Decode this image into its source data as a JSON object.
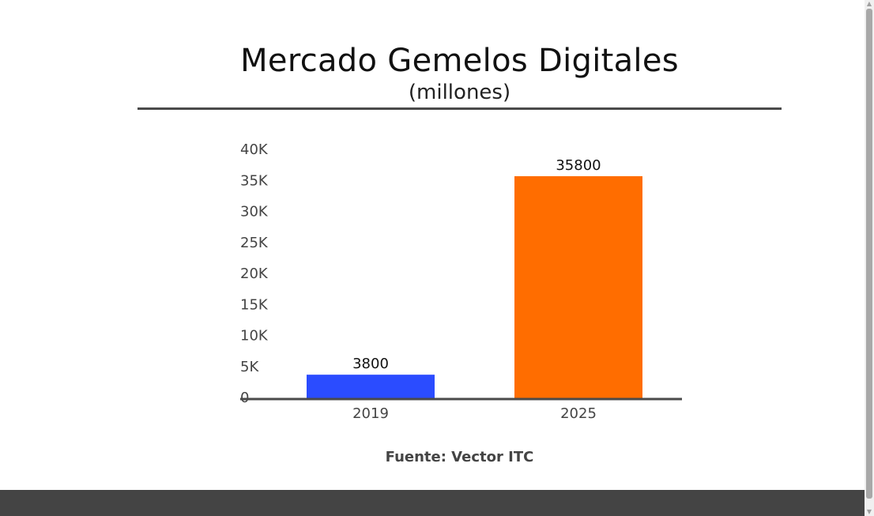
{
  "title": "Mercado Gemelos Digitales",
  "subtitle": "(millones)",
  "source": "Fuente: Vector ITC",
  "chart_data": {
    "type": "bar",
    "title": "Mercado Gemelos Digitales",
    "subtitle": "(millones)",
    "xlabel": "",
    "ylabel": "",
    "categories": [
      "2019",
      "2025"
    ],
    "values": [
      3800,
      35800
    ],
    "data_labels": [
      "3800",
      "35800"
    ],
    "bar_colors": [
      "#2b4cff",
      "#ff6d00"
    ],
    "ylim": [
      0,
      40000
    ],
    "y_ticks": [
      0,
      5000,
      10000,
      15000,
      20000,
      25000,
      30000,
      35000,
      40000
    ],
    "y_tick_labels": [
      "0",
      "5K",
      "10K",
      "15K",
      "20K",
      "25K",
      "30K",
      "35K",
      "40K"
    ],
    "grid": false,
    "legend": "none"
  },
  "colors": {
    "axis": "#4a4a4a",
    "footer": "#444444"
  },
  "scrollbar": {
    "up_icon": "▲",
    "down_icon": "▼"
  }
}
